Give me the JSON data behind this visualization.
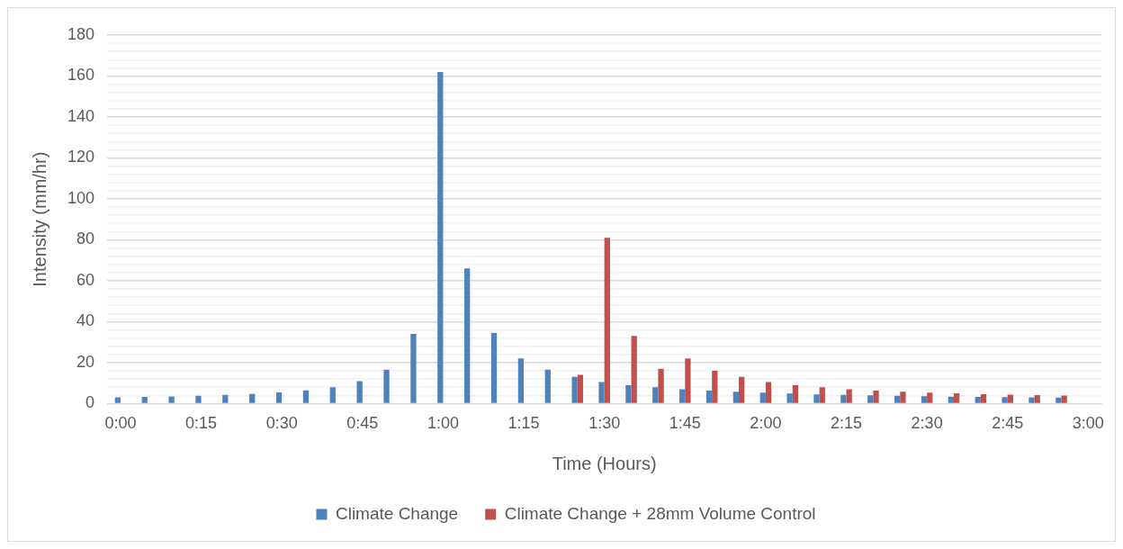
{
  "chart_data": {
    "type": "bar",
    "xlabel": "Time (Hours)",
    "ylabel": "Intensity (mm/hr)",
    "categories": [
      "0:00",
      null,
      null,
      "0:15",
      null,
      null,
      "0:30",
      null,
      null,
      "0:45",
      null,
      null,
      "1:00",
      null,
      null,
      "1:15",
      null,
      null,
      "1:30",
      null,
      null,
      "1:45",
      null,
      null,
      "2:00",
      null,
      null,
      "2:15",
      null,
      null,
      "2:30",
      null,
      null,
      "2:45",
      null,
      null,
      "3:00"
    ],
    "series": [
      {
        "name": "Climate Change",
        "color": "#4f81bd",
        "values": [
          3,
          3.2,
          3.5,
          3.8,
          4.2,
          4.7,
          5.4,
          6.4,
          8,
          11,
          16.5,
          34,
          162,
          66,
          34.5,
          22,
          16.5,
          13,
          10.5,
          9,
          8,
          7,
          6.3,
          5.8,
          5.3,
          4.9,
          4.5,
          4.2,
          4,
          3.8,
          3.6,
          3.4,
          3.2,
          3.1,
          3,
          2.9,
          null
        ]
      },
      {
        "name": "Climate Change + 28mm Volume Control",
        "color": "#c0504d",
        "values": [
          null,
          null,
          null,
          null,
          null,
          null,
          null,
          null,
          null,
          null,
          null,
          null,
          null,
          null,
          null,
          null,
          null,
          14,
          81,
          33,
          17,
          22,
          16,
          13,
          10.5,
          9,
          8,
          7,
          6.3,
          5.8,
          5.3,
          5,
          4.6,
          4.3,
          4.1,
          3.9,
          null
        ]
      }
    ],
    "ylim": [
      0,
      180
    ],
    "yticks": [
      0,
      {
        "value": 4,
        "label": null
      },
      {
        "value": 8,
        "label": null
      },
      {
        "value": 12,
        "label": null
      },
      {
        "value": 16,
        "label": null
      },
      20,
      {
        "value": 24,
        "label": null
      },
      {
        "value": 28,
        "label": null
      },
      {
        "value": 32,
        "label": null
      },
      {
        "value": 36,
        "label": null
      },
      40,
      {
        "value": 44,
        "label": null
      },
      {
        "value": 48,
        "label": null
      },
      {
        "value": 52,
        "label": null
      },
      {
        "value": 56,
        "label": null
      },
      60,
      {
        "value": 64,
        "label": null
      },
      {
        "value": 68,
        "label": null
      },
      {
        "value": 72,
        "label": null
      },
      {
        "value": 76,
        "label": null
      },
      80,
      {
        "value": 84,
        "label": null
      },
      {
        "value": 88,
        "label": null
      },
      {
        "value": 92,
        "label": null
      },
      {
        "value": 96,
        "label": null
      },
      100,
      {
        "value": 104,
        "label": null
      },
      {
        "value": 108,
        "label": null
      },
      {
        "value": 112,
        "label": null
      },
      {
        "value": 116,
        "label": null
      },
      120,
      {
        "value": 124,
        "label": null
      },
      {
        "value": 128,
        "label": null
      },
      {
        "value": 132,
        "label": null
      },
      {
        "value": 136,
        "label": null
      },
      140,
      {
        "value": 144,
        "label": null
      },
      {
        "value": 148,
        "label": null
      },
      {
        "value": 152,
        "label": null
      },
      {
        "value": 156,
        "label": null
      },
      160,
      {
        "value": 164,
        "label": null
      },
      {
        "value": 168,
        "label": null
      },
      {
        "value": 172,
        "label": null
      },
      {
        "value": 176,
        "label": null
      },
      180
    ],
    "grid": "y",
    "legend": "bottom"
  }
}
